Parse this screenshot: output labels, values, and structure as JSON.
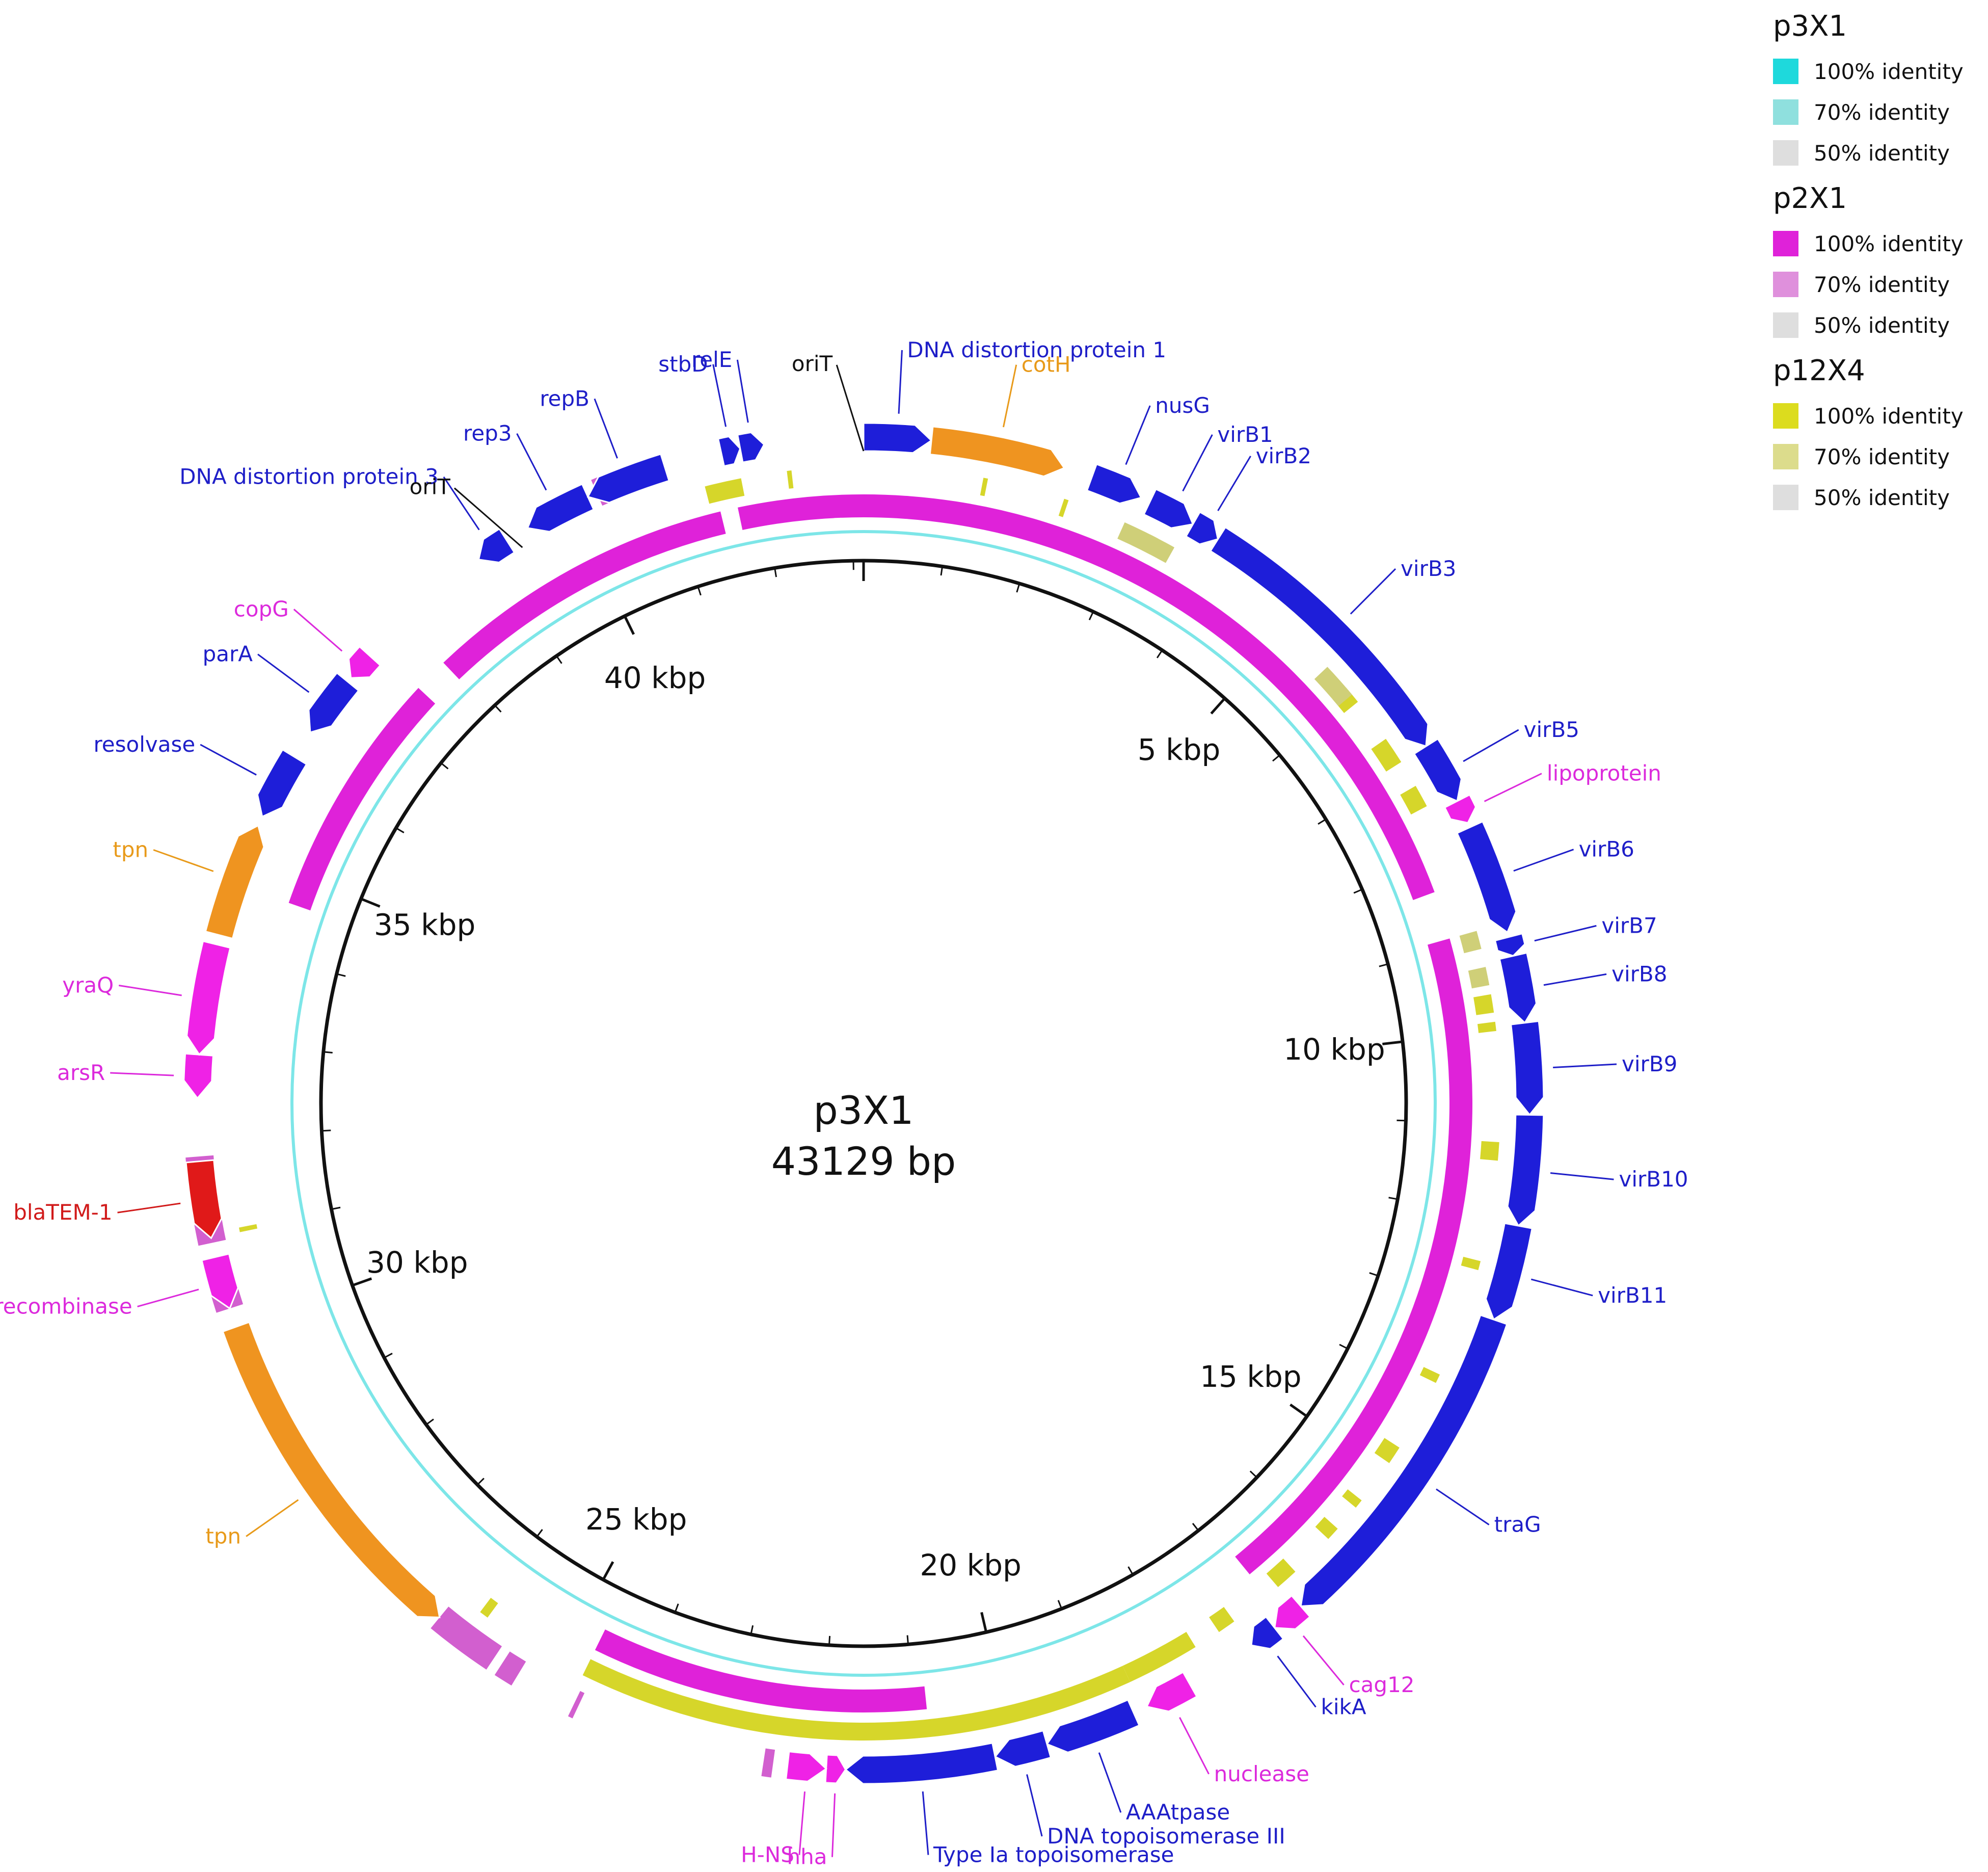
{
  "title": "p3X1",
  "length_label": "43129 bp",
  "total_bp": 43129,
  "tick_labels": [
    {
      "bp": 5000,
      "label": "5 kbp"
    },
    {
      "bp": 10000,
      "label": "10 kbp"
    },
    {
      "bp": 15000,
      "label": "15 kbp"
    },
    {
      "bp": 20000,
      "label": "20 kbp"
    },
    {
      "bp": 25000,
      "label": "25 kbp"
    },
    {
      "bp": 30000,
      "label": "30 kbp"
    },
    {
      "bp": 35000,
      "label": "35 kbp"
    },
    {
      "bp": 40000,
      "label": "40 kbp"
    }
  ],
  "legend": [
    {
      "name": "p3X1",
      "entries": [
        {
          "label": "100% identity",
          "color": "#1ed9dc"
        },
        {
          "label": "70% identity",
          "color": "#8fe0de"
        },
        {
          "label": "50% identity",
          "color": "#dedede"
        }
      ]
    },
    {
      "name": "p2X1",
      "entries": [
        {
          "label": "100% identity",
          "color": "#df22d9"
        },
        {
          "label": "70% identity",
          "color": "#df90dc"
        },
        {
          "label": "50% identity",
          "color": "#dedede"
        }
      ]
    },
    {
      "name": "p12X4",
      "entries": [
        {
          "label": "100% identity",
          "color": "#dcdc1e"
        },
        {
          "label": "70% identity",
          "color": "#dcdc8c"
        },
        {
          "label": "50% identity",
          "color": "#dedede"
        }
      ]
    }
  ],
  "rings": {
    "p3X1": {
      "color": "#1ed9dc",
      "segments": [
        [
          0,
          43129
        ]
      ]
    },
    "p2X1": {
      "color": "#df22d9",
      "segments": [
        [
          0,
          8350
        ],
        [
          8900,
          16850
        ],
        [
          20850,
          24700
        ],
        [
          34650,
          37500
        ],
        [
          37900,
          41500
        ],
        [
          41700,
          43129
        ]
      ]
    },
    "p2X1_small": {
      "color": "#d25fcf",
      "segments": [
        [
          8400,
          8750
        ],
        [
          25300,
          25500
        ],
        [
          25600,
          26300
        ],
        [
          30200,
          30450
        ],
        [
          30500,
          30700
        ],
        [
          30900,
          31800
        ],
        [
          34450,
          34550
        ],
        [
          40300,
          40400
        ],
        [
          24600,
          24650
        ],
        [
          22500,
          22600
        ],
        [
          28100,
          28150
        ]
      ]
    },
    "p12X4": {
      "color": "#d6d62a",
      "segments": [
        [
          16450,
          16700
        ],
        [
          17300,
          17500
        ],
        [
          17800,
          18600
        ],
        [
          18600,
          24700
        ],
        [
          1300,
          1350
        ],
        [
          2200,
          2250
        ],
        [
          3200,
          3300
        ],
        [
          5900,
          6100
        ],
        [
          6600,
          6900
        ],
        [
          7200,
          7450
        ],
        [
          9600,
          9800
        ],
        [
          9900,
          10000
        ],
        [
          11200,
          11400
        ],
        [
          12500,
          12600
        ],
        [
          13800,
          13900
        ],
        [
          14700,
          14900
        ],
        [
          15400,
          15500
        ],
        [
          15800,
          15950
        ],
        [
          25900,
          26000
        ],
        [
          41400,
          41800
        ],
        [
          42300,
          42350
        ],
        [
          30950,
          31000
        ]
      ]
    },
    "p12X4_pale": {
      "color": "#cfcf78",
      "segments": [
        [
          2900,
          3500
        ],
        [
          5600,
          6000
        ],
        [
          8900,
          9100
        ],
        [
          9300,
          9500
        ]
      ]
    }
  },
  "genes": [
    {
      "name": "DNA distortion protein 1",
      "start": 0,
      "end": 700,
      "strand": 1,
      "color": "#1e1ed9",
      "label_color": "#1e1ec8"
    },
    {
      "name": "cotH",
      "start": 700,
      "end": 2100,
      "strand": 1,
      "color": "#ef9420",
      "label_color": "#e89a1a"
    },
    {
      "name": "nusG",
      "start": 2400,
      "end": 2950,
      "strand": 1,
      "color": "#1e1ed9",
      "label_color": "#1e1ec8"
    },
    {
      "name": "virB1",
      "start": 3050,
      "end": 3550,
      "strand": 1,
      "color": "#1e1ed9",
      "label_color": "#1e1ec8"
    },
    {
      "name": "virB2",
      "start": 3550,
      "end": 3850,
      "strand": 1,
      "color": "#1e1ed9",
      "label_color": "#1e1ec8"
    },
    {
      "name": "virB3",
      "start": 3850,
      "end": 6900,
      "strand": 1,
      "color": "#1e1ed9",
      "label_color": "#1e1ec8"
    },
    {
      "name": "virB5",
      "start": 6900,
      "end": 7550,
      "strand": 1,
      "color": "#1e1ed9",
      "label_color": "#1e1ec8"
    },
    {
      "name": "lipoprotein",
      "start": 7550,
      "end": 7800,
      "strand": 1,
      "color": "#ef22e6",
      "label_color": "#dc2adc"
    },
    {
      "name": "virB6",
      "start": 7850,
      "end": 9000,
      "strand": 1,
      "color": "#1e1ed9",
      "label_color": "#1e1ec8"
    },
    {
      "name": "virB7",
      "start": 9050,
      "end": 9250,
      "strand": 1,
      "color": "#1e1ed9",
      "label_color": "#1e1ec8"
    },
    {
      "name": "virB8",
      "start": 9250,
      "end": 9950,
      "strand": 1,
      "color": "#1e1ed9",
      "label_color": "#1e1ec8"
    },
    {
      "name": "virB9",
      "start": 9950,
      "end": 10900,
      "strand": 1,
      "color": "#1e1ed9",
      "label_color": "#1e1ec8"
    },
    {
      "name": "virB10",
      "start": 10900,
      "end": 12050,
      "strand": 1,
      "color": "#1e1ed9",
      "label_color": "#1e1ec8"
    },
    {
      "name": "virB11",
      "start": 12050,
      "end": 13050,
      "strand": 1,
      "color": "#1e1ed9",
      "label_color": "#1e1ec8"
    },
    {
      "name": "traG",
      "start": 13050,
      "end": 16650,
      "strand": 1,
      "color": "#1e1ed9",
      "label_color": "#1e1ec8"
    },
    {
      "name": "cag12",
      "start": 16650,
      "end": 17000,
      "strand": 1,
      "color": "#ef22e6",
      "label_color": "#dc2adc"
    },
    {
      "name": "kikA",
      "start": 17000,
      "end": 17300,
      "strand": 1,
      "color": "#1e1ed9",
      "label_color": "#1e1ec8"
    },
    {
      "name": "nuclease",
      "start": 18050,
      "end": 18550,
      "strand": 1,
      "color": "#ef22e6",
      "label_color": "#dc2adc"
    },
    {
      "name": "AAAtpase",
      "start": 18700,
      "end": 19650,
      "strand": 1,
      "color": "#1e1ed9",
      "label_color": "#1e1ec8"
    },
    {
      "name": "DNA topoisomerase III",
      "start": 19650,
      "end": 20200,
      "strand": 1,
      "color": "#1e1ed9",
      "label_color": "#1e1ec8"
    },
    {
      "name": "Type Ia topoisomerase",
      "start": 20200,
      "end": 21750,
      "strand": 1,
      "color": "#1e1ed9",
      "label_color": "#1e1ec8"
    },
    {
      "name": "hha",
      "start": 21750,
      "end": 21950,
      "strand": -1,
      "color": "#ef22e6",
      "label_color": "#dc2adc"
    },
    {
      "name": "H-NS",
      "start": 21950,
      "end": 22350,
      "strand": -1,
      "color": "#ef22e6",
      "label_color": "#dc2adc"
    },
    {
      "name": "tpn",
      "start": 26300,
      "end": 30000,
      "strand": -1,
      "color": "#ef9420",
      "label_color": "#e89a1a"
    },
    {
      "name": "recombinase",
      "start": 30200,
      "end": 30750,
      "strand": -1,
      "color": "#ef22e6",
      "label_color": "#dc2adc"
    },
    {
      "name": "blaTEM-1",
      "start": 30950,
      "end": 31750,
      "strand": -1,
      "color": "#e01919",
      "label_color": "#d11a1a"
    },
    {
      "name": "arsR",
      "start": 32400,
      "end": 32850,
      "strand": -1,
      "color": "#ef22e6",
      "label_color": "#dc2adc"
    },
    {
      "name": "yraQ",
      "start": 32850,
      "end": 34000,
      "strand": -1,
      "color": "#ef22e6",
      "label_color": "#dc2adc"
    },
    {
      "name": "tpn",
      "start": 34100,
      "end": 35300,
      "strand": 1,
      "color": "#ef9420",
      "label_color": "#e89a1a"
    },
    {
      "name": "resolvase",
      "start": 35400,
      "end": 36100,
      "strand": -1,
      "color": "#1e1ed9",
      "label_color": "#1e1ec8"
    },
    {
      "name": "parA",
      "start": 36400,
      "end": 37050,
      "strand": -1,
      "color": "#1e1ed9",
      "label_color": "#1e1ec8"
    },
    {
      "name": "copG",
      "start": 37100,
      "end": 37400,
      "strand": -1,
      "color": "#ef22e6",
      "label_color": "#dc2adc"
    },
    {
      "name": "DNA distortion protein 3",
      "start": 38900,
      "end": 39250,
      "strand": -1,
      "color": "#1e1ed9",
      "label_color": "#1e1ec8"
    },
    {
      "name": "rep3",
      "start": 39500,
      "end": 40200,
      "strand": -1,
      "color": "#1e1ed9",
      "label_color": "#1e1ec8"
    },
    {
      "name": "repB",
      "start": 40200,
      "end": 41050,
      "strand": -1,
      "color": "#1e1ed9",
      "label_color": "#1e1ec8"
    },
    {
      "name": "stbD",
      "start": 41650,
      "end": 41850,
      "strand": 1,
      "color": "#1e1ed9",
      "label_color": "#1e1ec8"
    },
    {
      "name": "relE",
      "start": 41850,
      "end": 42100,
      "strand": 1,
      "color": "#1e1ed9",
      "label_color": "#1e1ec8"
    }
  ],
  "features": [
    {
      "name": "oriT",
      "bp": 0,
      "color": "#111111"
    },
    {
      "name": "oriT",
      "bp": 39350,
      "color": "#111111"
    }
  ]
}
